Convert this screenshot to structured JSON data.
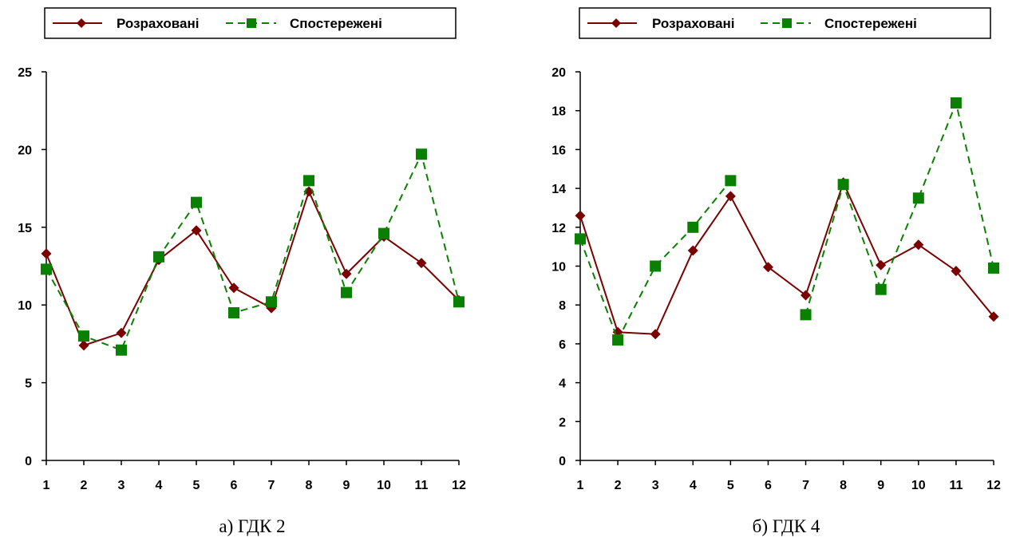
{
  "colors": {
    "calculated": "#7b0000",
    "observed": "#0a8000",
    "axis": "#000000"
  },
  "chart_data": [
    {
      "type": "line",
      "caption": "а) ГДК 2",
      "categories": [
        "1",
        "2",
        "3",
        "4",
        "5",
        "6",
        "7",
        "8",
        "9",
        "10",
        "11",
        "12"
      ],
      "ylim": [
        0,
        25
      ],
      "yticks": [
        "0",
        "5",
        "10",
        "15",
        "20",
        "25"
      ],
      "grid": false,
      "legend": "top",
      "series": [
        {
          "name": "Розраховані",
          "values": [
            13.3,
            7.4,
            8.2,
            12.9,
            14.8,
            11.1,
            9.8,
            17.3,
            12.0,
            14.4,
            12.7,
            10.3
          ]
        },
        {
          "name": "Спостережені",
          "values": [
            12.3,
            8.0,
            7.1,
            13.1,
            16.6,
            9.5,
            10.2,
            18.0,
            10.8,
            14.6,
            19.7,
            10.2
          ]
        }
      ]
    },
    {
      "type": "line",
      "caption": "б) ГДК 4",
      "categories": [
        "1",
        "2",
        "3",
        "4",
        "5",
        "6",
        "7",
        "8",
        "9",
        "10",
        "11",
        "12"
      ],
      "ylim": [
        0,
        20
      ],
      "yticks": [
        "0",
        "2",
        "4",
        "6",
        "8",
        "10",
        "12",
        "14",
        "16",
        "18",
        "20"
      ],
      "grid": false,
      "legend": "top",
      "series": [
        {
          "name": "Розраховані",
          "values": [
            12.6,
            6.6,
            6.5,
            10.8,
            13.6,
            9.95,
            8.5,
            14.3,
            10.05,
            11.1,
            9.75,
            7.4
          ]
        },
        {
          "name": "Спостережені",
          "values": [
            11.4,
            6.2,
            10.0,
            12.0,
            14.4,
            null,
            7.5,
            14.2,
            8.8,
            13.5,
            18.4,
            9.9
          ]
        }
      ]
    }
  ]
}
